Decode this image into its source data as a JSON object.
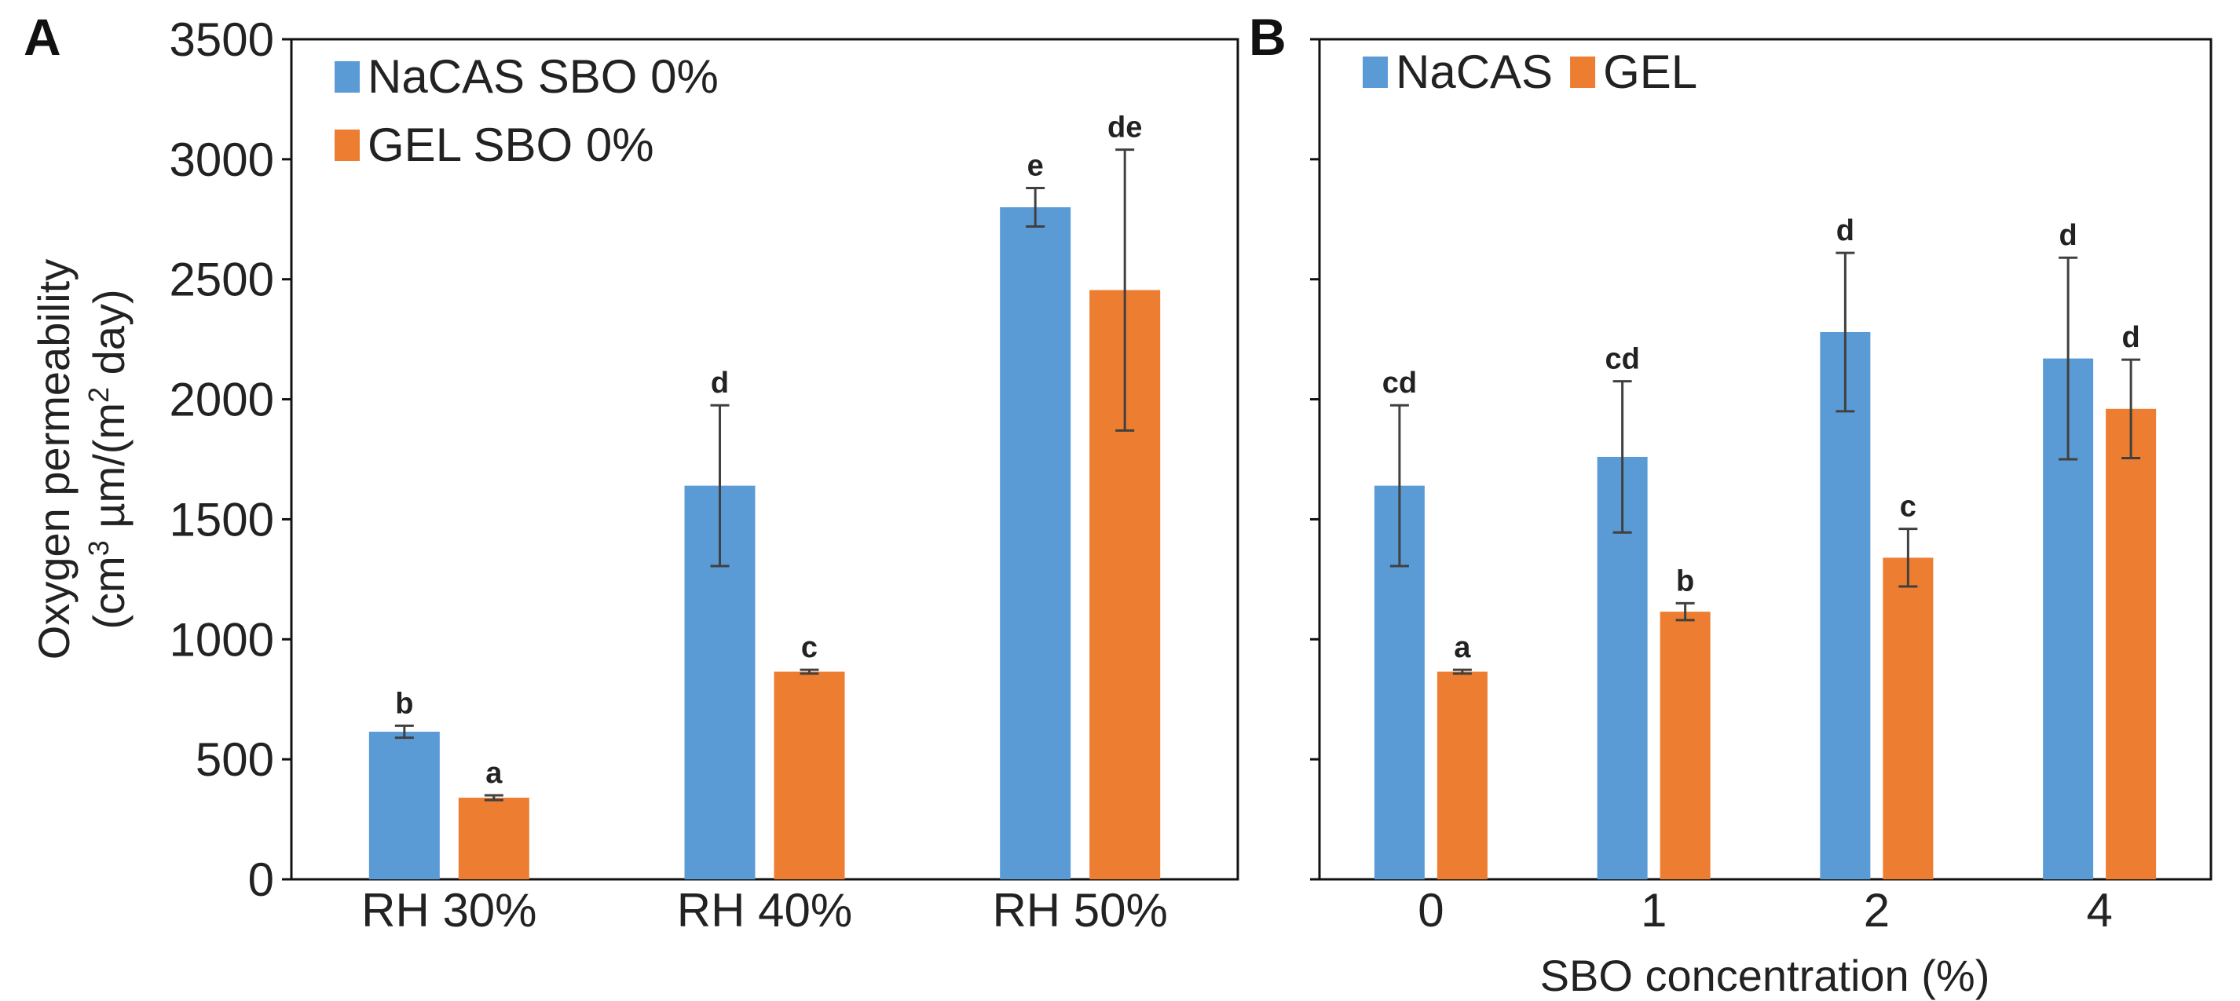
{
  "colors": {
    "NaCAS": "#5b9bd5",
    "GEL": "#ed7d31",
    "error": "#404040"
  },
  "chart_data": [
    {
      "type": "bar",
      "panel": "A",
      "categories": [
        "RH 30%",
        "RH 40%",
        "RH 50%"
      ],
      "ylabel_line1": "Oxygen permeability",
      "ylabel_line2_pre": "(cm",
      "ylabel_sup1": "3",
      "ylabel_mid": " µm/(m",
      "ylabel_sup2": "2",
      "ylabel_post": " day)",
      "xlabel": "",
      "ylim": [
        0,
        3500
      ],
      "yticks": [
        0,
        500,
        1000,
        1500,
        2000,
        2500,
        3000,
        3500
      ],
      "legend_position": "top-left",
      "series": [
        {
          "name": "NaCAS SBO 0%",
          "color_key": "NaCAS",
          "values": [
            615,
            1640,
            2800
          ],
          "errors": [
            25,
            335,
            80
          ],
          "letters": [
            "b",
            "d",
            "e"
          ]
        },
        {
          "name": "GEL SBO 0%",
          "color_key": "GEL",
          "values": [
            340,
            865,
            2455
          ],
          "errors": [
            10,
            8,
            585
          ],
          "letters": [
            "a",
            "c",
            "de"
          ]
        }
      ]
    },
    {
      "type": "bar",
      "panel": "B",
      "categories": [
        "0",
        "1",
        "2",
        "4"
      ],
      "xlabel": "SBO concentration (%)",
      "ylim": [
        0,
        3500
      ],
      "yticks": [
        0,
        500,
        1000,
        1500,
        2000,
        2500,
        3000,
        3500
      ],
      "legend_position": "top-left",
      "series": [
        {
          "name": "NaCAS",
          "color_key": "NaCAS",
          "values": [
            1640,
            1760,
            2280,
            2170
          ],
          "errors": [
            335,
            315,
            330,
            420
          ],
          "letters": [
            "cd",
            "cd",
            "d",
            "d"
          ]
        },
        {
          "name": "GEL",
          "color_key": "GEL",
          "values": [
            865,
            1115,
            1340,
            1960
          ],
          "errors": [
            8,
            35,
            120,
            205
          ],
          "letters": [
            "a",
            "b",
            "c",
            "d"
          ]
        }
      ]
    }
  ]
}
